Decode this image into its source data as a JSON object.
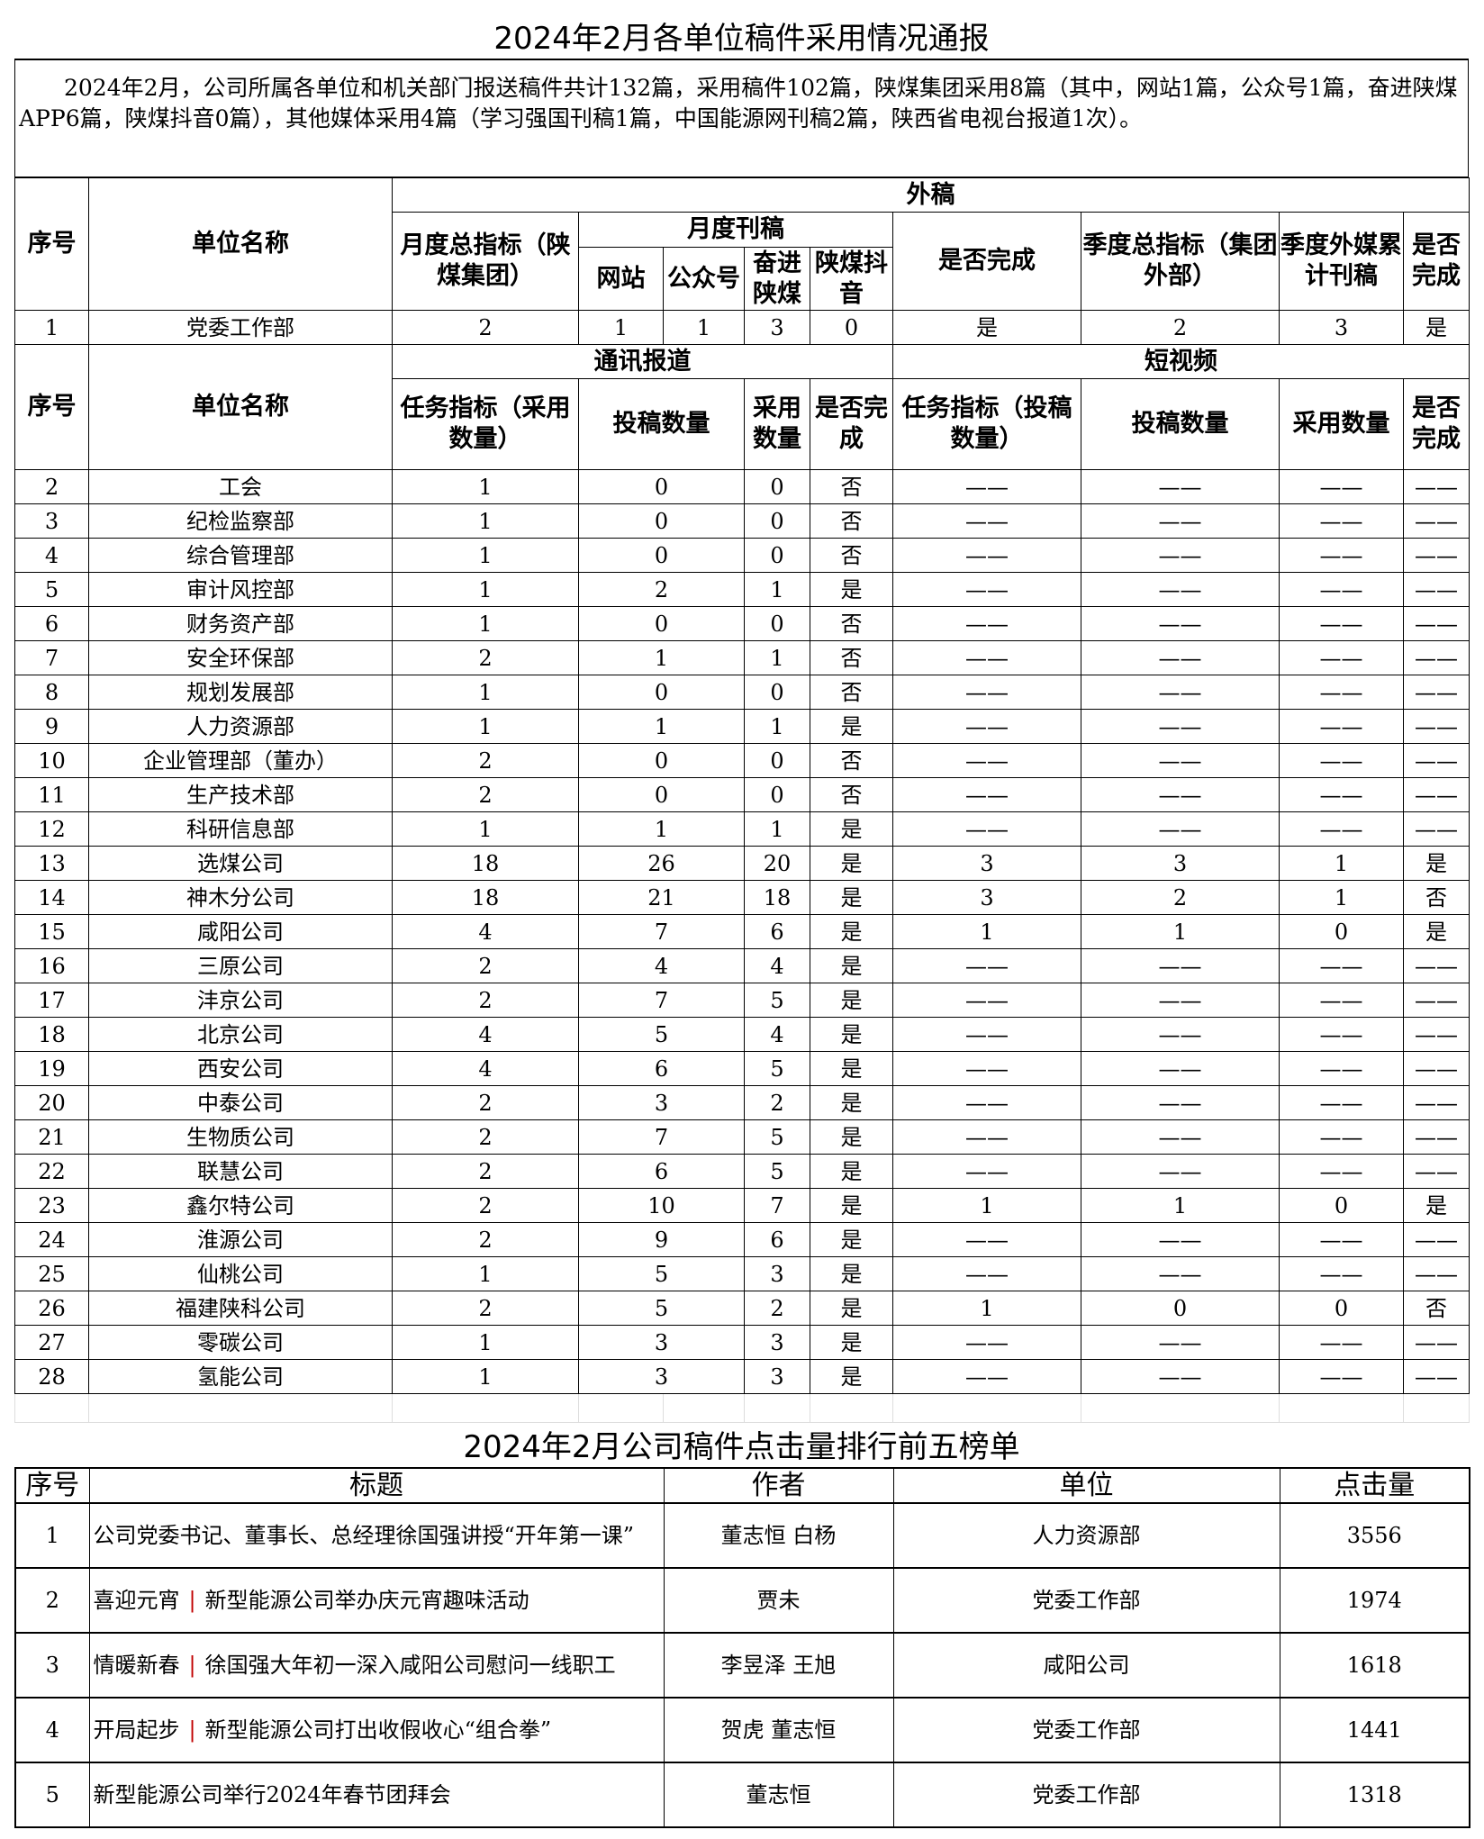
{
  "title": "2024年2月各单位稿件采用情况通报",
  "summary": "2024年2月，公司所属各单位和机关部门报送稿件共计132篇，采用稿件102篇，陕煤集团采用8篇（其中，网站1篇，公众号1篇，奋进陕煤APP6篇，陕煤抖音0篇），其他媒体采用4篇（学习强国刊稿1篇，中国能源网刊稿2篇，陕西省电视台报道1次）。",
  "header1": {
    "seq": "序号",
    "unit": "单位名称",
    "external": "外稿",
    "monthly_target": "月度总指标（陕煤集团）",
    "monthly_pub": "月度刊稿",
    "website": "网站",
    "wechat": "公众号",
    "app": "奋进陕煤",
    "douyin": "陕煤抖音",
    "done": "是否完成",
    "quarter_target": "季度总指标（集团外部）",
    "quarter_media": "季度外媒累计刊稿",
    "done2": "是否完成"
  },
  "row1": [
    "1",
    "党委工作部",
    "2",
    "1",
    "1",
    "3",
    "0",
    "是",
    "2",
    "3",
    "是"
  ],
  "header2": {
    "seq": "序号",
    "unit": "单位名称",
    "news": "通讯报道",
    "video": "短视频",
    "task": "任务指标（采用数量）",
    "submit": "投稿数量",
    "adopt": "采用数量",
    "done": "是否完成",
    "vtask": "任务指标（投稿数量）",
    "vsubmit": "投稿数量",
    "vadopt": "采用数量",
    "vdone": "是否完成"
  },
  "rows": [
    [
      "2",
      "工会",
      "1",
      "0",
      "0",
      "否",
      "——",
      "——",
      "——",
      "——"
    ],
    [
      "3",
      "纪检监察部",
      "1",
      "0",
      "0",
      "否",
      "——",
      "——",
      "——",
      "——"
    ],
    [
      "4",
      "综合管理部",
      "1",
      "0",
      "0",
      "否",
      "——",
      "——",
      "——",
      "——"
    ],
    [
      "5",
      "审计风控部",
      "1",
      "2",
      "1",
      "是",
      "——",
      "——",
      "——",
      "——"
    ],
    [
      "6",
      "财务资产部",
      "1",
      "0",
      "0",
      "否",
      "——",
      "——",
      "——",
      "——"
    ],
    [
      "7",
      "安全环保部",
      "2",
      "1",
      "1",
      "否",
      "——",
      "——",
      "——",
      "——"
    ],
    [
      "8",
      "规划发展部",
      "1",
      "0",
      "0",
      "否",
      "——",
      "——",
      "——",
      "——"
    ],
    [
      "9",
      "人力资源部",
      "1",
      "1",
      "1",
      "是",
      "——",
      "——",
      "——",
      "——"
    ],
    [
      "10",
      "企业管理部（董办）",
      "2",
      "0",
      "0",
      "否",
      "——",
      "——",
      "——",
      "——"
    ],
    [
      "11",
      "生产技术部",
      "2",
      "0",
      "0",
      "否",
      "——",
      "——",
      "——",
      "——"
    ],
    [
      "12",
      "科研信息部",
      "1",
      "1",
      "1",
      "是",
      "——",
      "——",
      "——",
      "——"
    ],
    [
      "13",
      "选煤公司",
      "18",
      "26",
      "20",
      "是",
      "3",
      "3",
      "1",
      "是"
    ],
    [
      "14",
      "神木分公司",
      "18",
      "21",
      "18",
      "是",
      "3",
      "2",
      "1",
      "否"
    ],
    [
      "15",
      "咸阳公司",
      "4",
      "7",
      "6",
      "是",
      "1",
      "1",
      "0",
      "是"
    ],
    [
      "16",
      "三原公司",
      "2",
      "4",
      "4",
      "是",
      "——",
      "——",
      "——",
      "——"
    ],
    [
      "17",
      "沣京公司",
      "2",
      "7",
      "5",
      "是",
      "——",
      "——",
      "——",
      "——"
    ],
    [
      "18",
      "北京公司",
      "4",
      "5",
      "4",
      "是",
      "——",
      "——",
      "——",
      "——"
    ],
    [
      "19",
      "西安公司",
      "4",
      "6",
      "5",
      "是",
      "——",
      "——",
      "——",
      "——"
    ],
    [
      "20",
      "中泰公司",
      "2",
      "3",
      "2",
      "是",
      "——",
      "——",
      "——",
      "——"
    ],
    [
      "21",
      "生物质公司",
      "2",
      "7",
      "5",
      "是",
      "——",
      "——",
      "——",
      "——"
    ],
    [
      "22",
      "联慧公司",
      "2",
      "6",
      "5",
      "是",
      "——",
      "——",
      "——",
      "——"
    ],
    [
      "23",
      "鑫尔特公司",
      "2",
      "10",
      "7",
      "是",
      "1",
      "1",
      "0",
      "是"
    ],
    [
      "24",
      "淮源公司",
      "2",
      "9",
      "6",
      "是",
      "——",
      "——",
      "——",
      "——"
    ],
    [
      "25",
      "仙桃公司",
      "1",
      "5",
      "3",
      "是",
      "——",
      "——",
      "——",
      "——"
    ],
    [
      "26",
      "福建陕科公司",
      "2",
      "5",
      "2",
      "是",
      "1",
      "0",
      "0",
      "否"
    ],
    [
      "27",
      "零碳公司",
      "1",
      "3",
      "3",
      "是",
      "——",
      "——",
      "——",
      "——"
    ],
    [
      "28",
      "氢能公司",
      "1",
      "3",
      "3",
      "是",
      "——",
      "——",
      "——",
      "——"
    ]
  ],
  "ranking": {
    "title": "2024年2月公司稿件点击量排行前五榜单",
    "headers": [
      "序号",
      "标题",
      "作者",
      "单位",
      "点击量"
    ],
    "rows": [
      {
        "seq": "1",
        "title": [
          "公司党委书记、董事长、总经理徐国强讲授“开年第一课”"
        ],
        "author": "董志恒  白杨",
        "unit": "人力资源部",
        "clicks": "3556"
      },
      {
        "seq": "2",
        "title": [
          "喜迎元宵",
          "新型能源公司举办庆元宵趣味活动"
        ],
        "author": "贾未",
        "unit": "党委工作部",
        "clicks": "1974"
      },
      {
        "seq": "3",
        "title": [
          "情暖新春",
          "徐国强大年初一深入咸阳公司慰问一线职工"
        ],
        "author": "李昱泽  王旭",
        "unit": "咸阳公司",
        "clicks": "1618"
      },
      {
        "seq": "4",
        "title": [
          "开局起步",
          "新型能源公司打出收假收心“组合拳”"
        ],
        "author": "贺虎  董志恒",
        "unit": "党委工作部",
        "clicks": "1441"
      },
      {
        "seq": "5",
        "title": [
          "新型能源公司举行2024年春节团拜会"
        ],
        "author": "董志恒",
        "unit": "党委工作部",
        "clicks": "1318"
      }
    ]
  }
}
